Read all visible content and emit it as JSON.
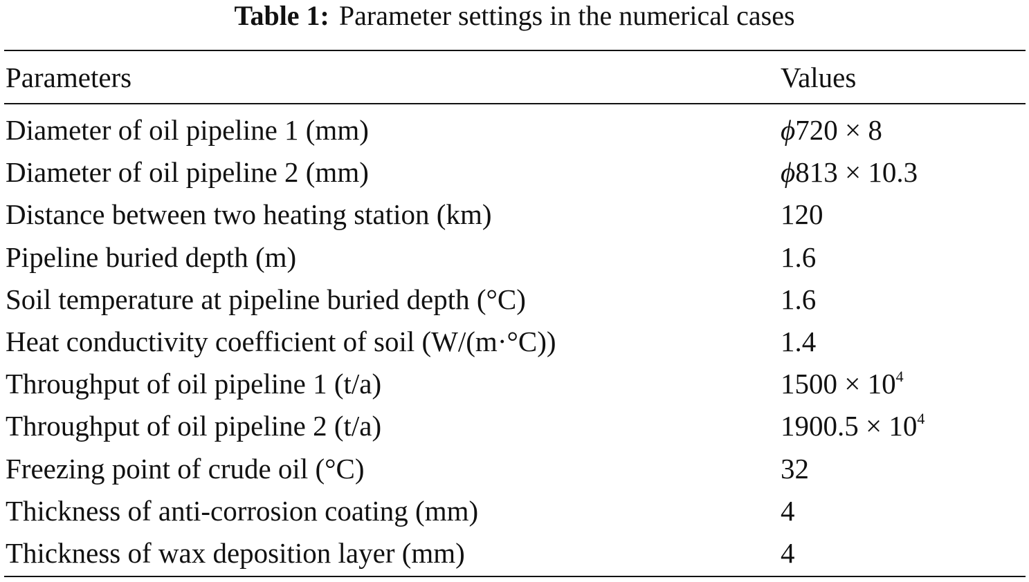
{
  "caption": {
    "label": "Table 1:",
    "text": "Parameter settings in the numerical cases"
  },
  "table": {
    "header": [
      "Parameters",
      "Values"
    ],
    "rows": [
      {
        "parameter": "Diameter of oil pipeline 1 (mm)",
        "value": {
          "symbol": "ϕ",
          "text": "720 × 8"
        }
      },
      {
        "parameter": "Diameter of oil pipeline 2 (mm)",
        "value": {
          "symbol": "ϕ",
          "text": "813 × 10.3"
        }
      },
      {
        "parameter": "Distance between two heating station (km)",
        "value": "120"
      },
      {
        "parameter": "Pipeline buried depth (m)",
        "value": "1.6"
      },
      {
        "parameter": "Soil temperature at pipeline buried depth (°C)",
        "value": "1.6"
      },
      {
        "parameter": "Heat conductivity coefficient of soil (W/(m·°C))",
        "value": "1.4"
      },
      {
        "parameter": "Throughput of oil pipeline 1 (t/a)",
        "value": {
          "text": "1500 × 10",
          "superscript": "4"
        }
      },
      {
        "parameter": "Throughput of oil pipeline 2 (t/a)",
        "value": {
          "text": "1900.5 × 10",
          "superscript": "4"
        }
      },
      {
        "parameter": "Freezing point of crude oil (°C)",
        "value": "32"
      },
      {
        "parameter": "Thickness of anti-corrosion coating (mm)",
        "value": "4"
      },
      {
        "parameter": "Thickness of wax deposition layer (mm)",
        "value": "4"
      }
    ]
  }
}
